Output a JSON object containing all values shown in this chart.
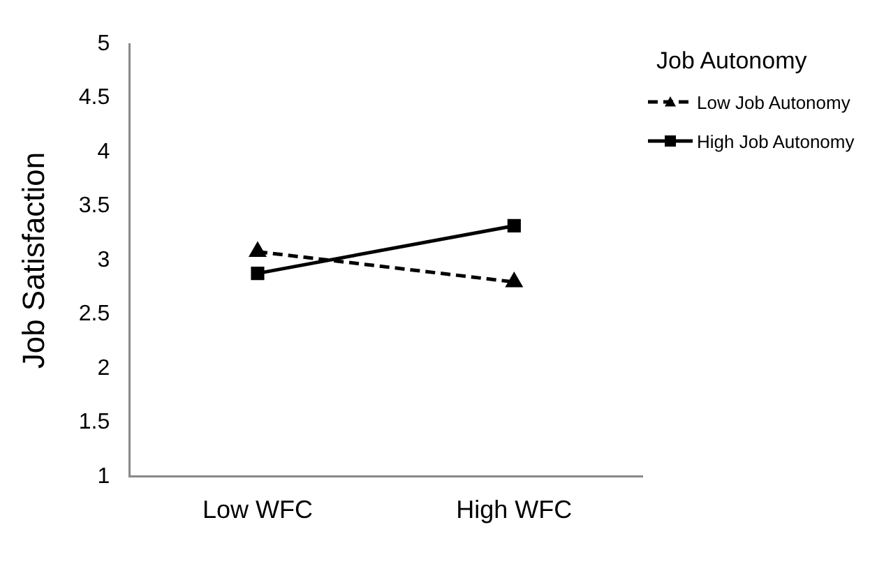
{
  "chart_data": {
    "type": "line",
    "ylabel": "Job Satisfaction",
    "legend_title": "Job Autonomy",
    "categories": [
      "Low WFC",
      "High WFC"
    ],
    "series": [
      {
        "name": "Low Job Autonomy",
        "color": "#000000",
        "values": [
          3.08,
          2.8
        ],
        "marker": "triangle",
        "line_style": "dashed"
      },
      {
        "name": "High Job Autonomy",
        "color": "#000000",
        "values": [
          2.88,
          3.32
        ],
        "marker": "square",
        "line_style": "solid"
      }
    ],
    "ylim": [
      1,
      5
    ],
    "yticks": [
      1,
      1.5,
      2,
      2.5,
      3,
      3.5,
      4,
      4.5,
      5
    ],
    "grid": false,
    "legend": "top right"
  }
}
